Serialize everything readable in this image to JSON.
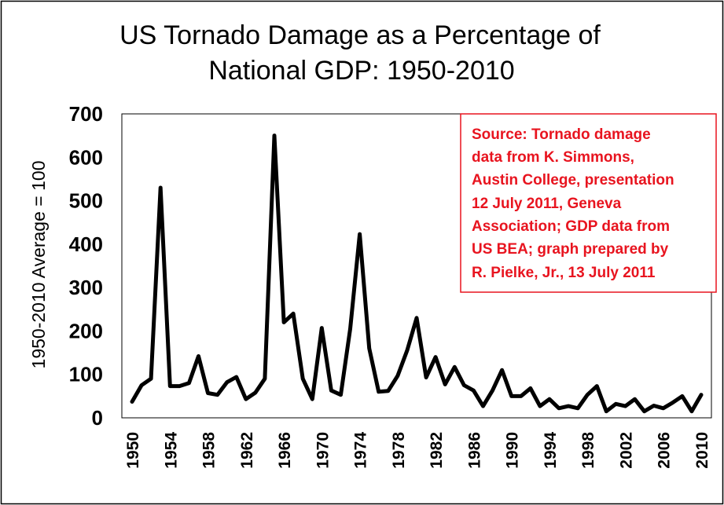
{
  "title_lines": [
    "US Tornado Damage as a Percentage of",
    "National GDP: 1950-2010"
  ],
  "annotation": {
    "lines": [
      "Source: Tornado damage",
      "data from K. Simmons,",
      "Austin College, presentation",
      "12 July 2011, Geneva",
      "Association; GDP data from",
      "US BEA; graph prepared by",
      "R. Pielke, Jr., 13 July 2011"
    ],
    "color": "#e8141f",
    "border_color": "#e8141f"
  },
  "chart_data": {
    "type": "line",
    "title": "US Tornado Damage as a Percentage of National GDP: 1950-2010",
    "xlabel": "",
    "ylabel": "1950-2010 Average = 100",
    "xlim": [
      1950,
      2010
    ],
    "ylim": [
      0,
      700
    ],
    "grid": false,
    "legend": "none",
    "x_ticks": [
      1950,
      1954,
      1958,
      1962,
      1966,
      1970,
      1974,
      1978,
      1982,
      1986,
      1990,
      1994,
      1998,
      2002,
      2006,
      2010
    ],
    "y_ticks": [
      0,
      100,
      200,
      300,
      400,
      500,
      600,
      700
    ],
    "line_color": "#000000",
    "x": [
      1950,
      1951,
      1952,
      1953,
      1954,
      1955,
      1956,
      1957,
      1958,
      1959,
      1960,
      1961,
      1962,
      1963,
      1964,
      1965,
      1966,
      1967,
      1968,
      1969,
      1970,
      1971,
      1972,
      1973,
      1974,
      1975,
      1976,
      1977,
      1978,
      1979,
      1980,
      1981,
      1982,
      1983,
      1984,
      1985,
      1986,
      1987,
      1988,
      1989,
      1990,
      1991,
      1992,
      1993,
      1994,
      1995,
      1996,
      1997,
      1998,
      1999,
      2000,
      2001,
      2002,
      2003,
      2004,
      2005,
      2006,
      2007,
      2008,
      2009,
      2010
    ],
    "values": [
      37,
      75,
      90,
      530,
      73,
      73,
      80,
      142,
      57,
      53,
      82,
      94,
      43,
      58,
      90,
      650,
      220,
      240,
      90,
      43,
      207,
      63,
      53,
      205,
      423,
      160,
      60,
      62,
      97,
      155,
      230,
      93,
      140,
      77,
      117,
      75,
      63,
      27,
      63,
      110,
      50,
      50,
      68,
      27,
      43,
      22,
      27,
      22,
      53,
      73,
      15,
      32,
      27,
      43,
      15,
      28,
      22,
      35,
      50,
      15,
      53
    ]
  }
}
